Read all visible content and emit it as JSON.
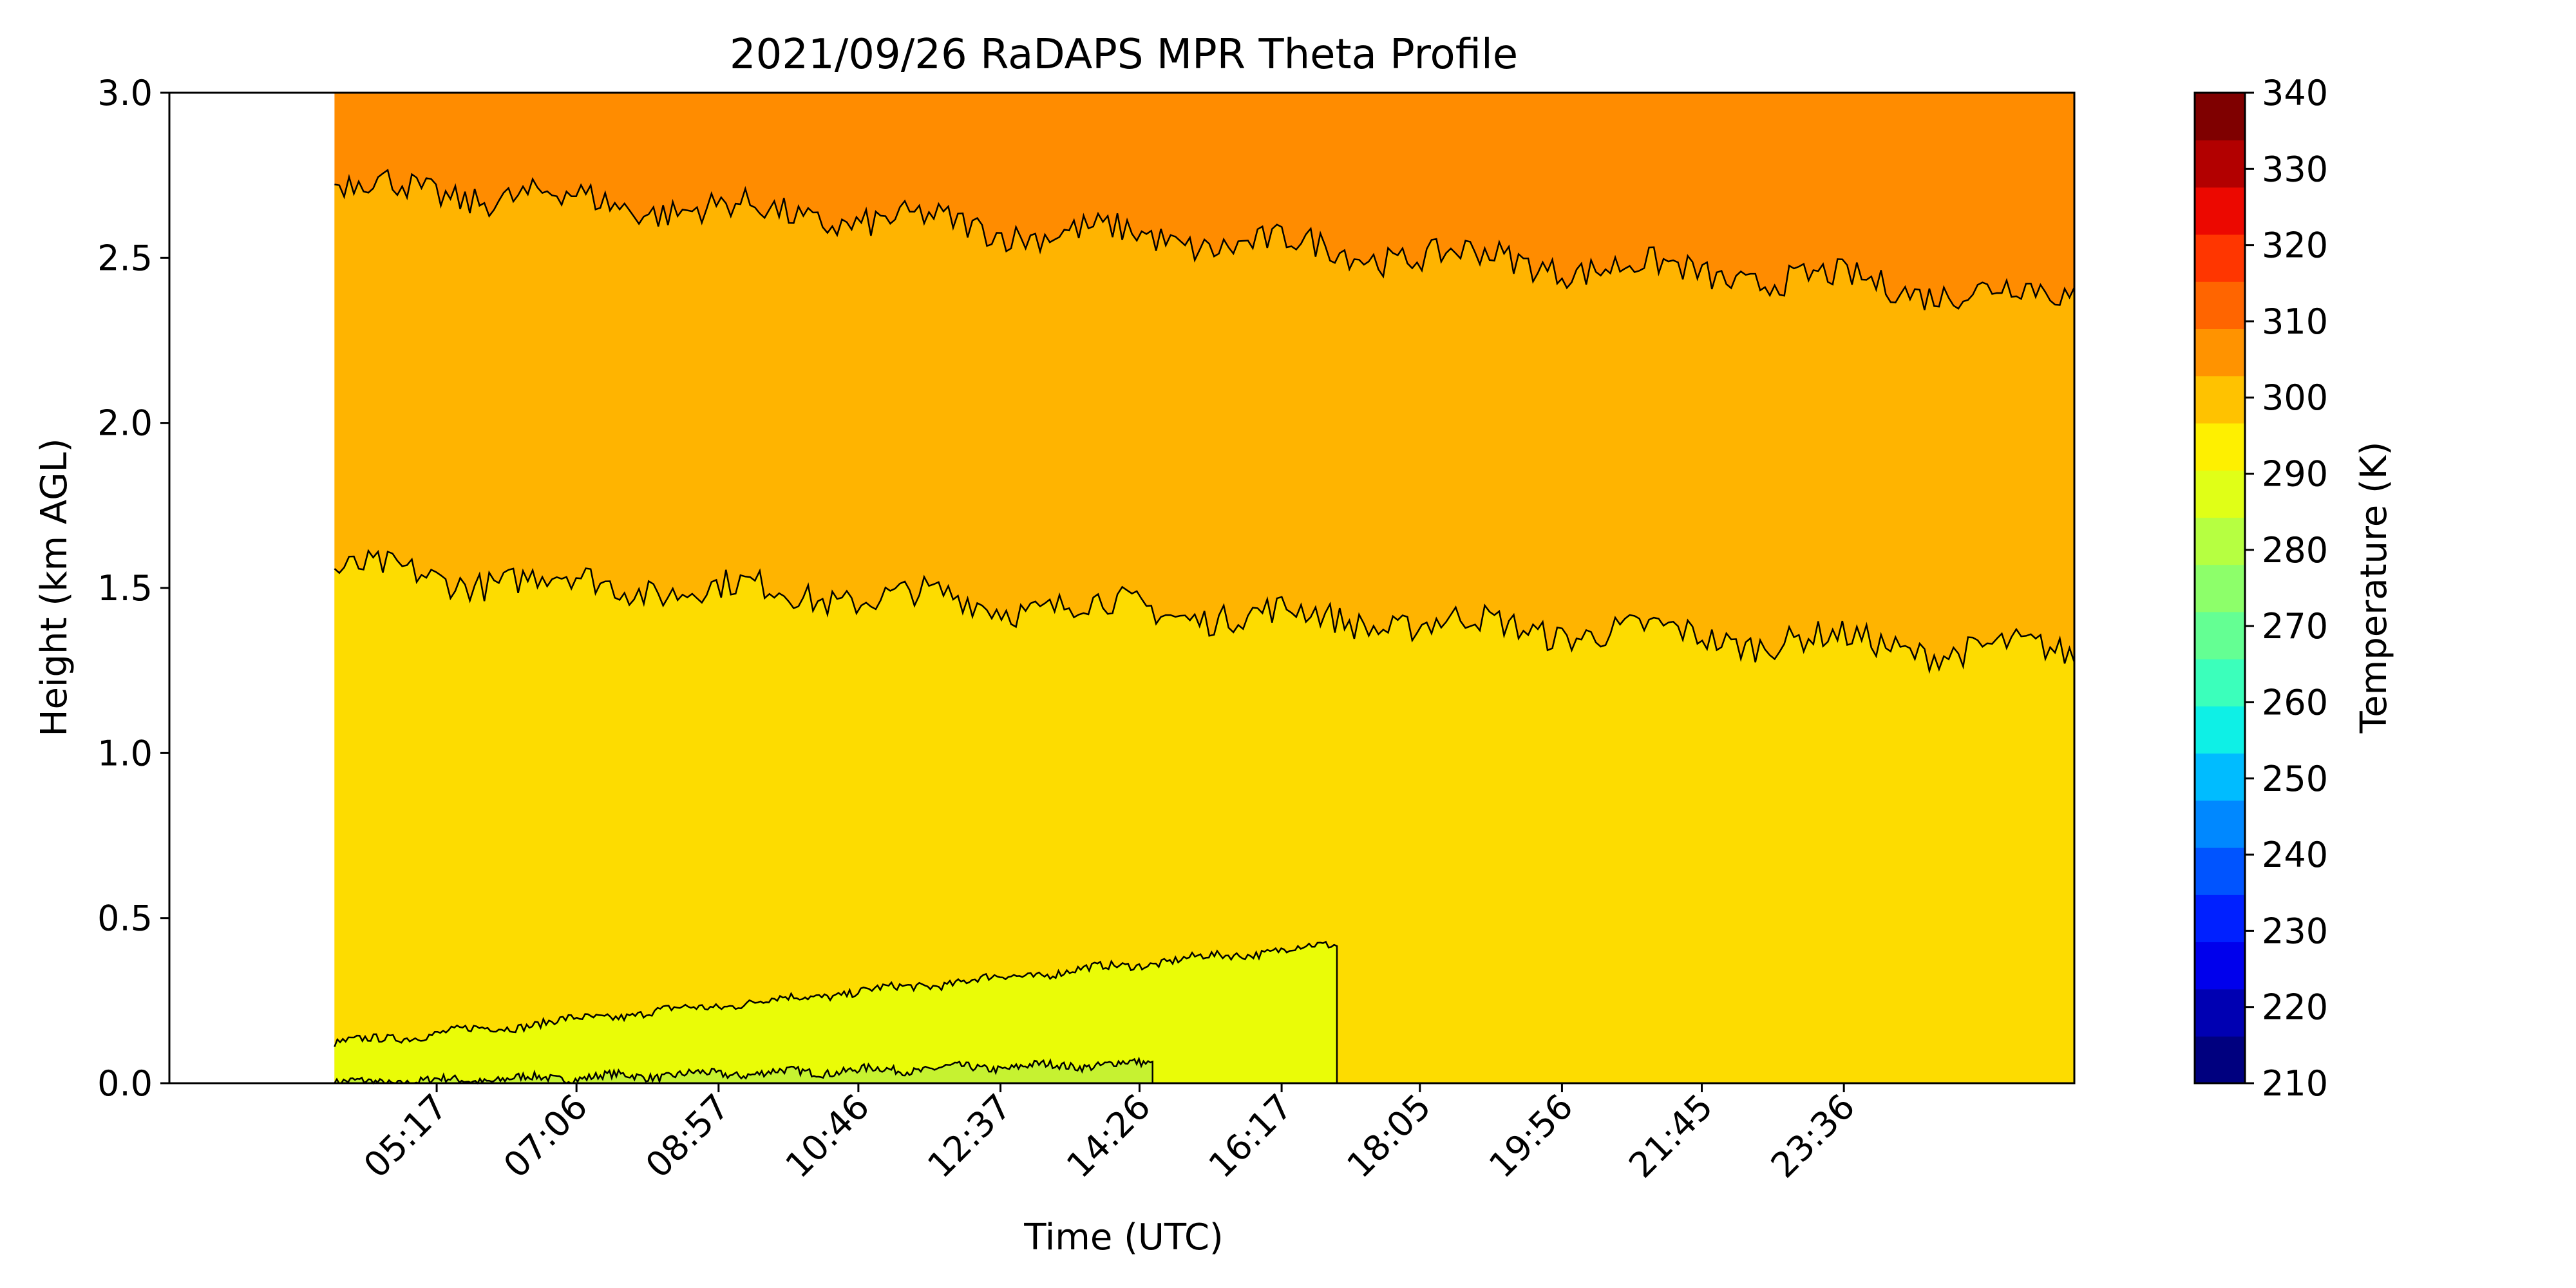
{
  "chart_data": {
    "type": "heatmap",
    "title": "2021/09/26 RaDAPS MPR Theta Profile",
    "xlabel": "Time (UTC)",
    "ylabel": "Height (km AGL)",
    "x_range_hours": [
      1.8,
      26.6
    ],
    "ylim": [
      0,
      3
    ],
    "x_ticks": [
      "05:17",
      "07:06",
      "08:57",
      "10:46",
      "12:37",
      "14:26",
      "16:17",
      "18:05",
      "19:56",
      "21:45",
      "23:36"
    ],
    "x_tick_hours": [
      5.28,
      7.1,
      8.95,
      10.77,
      12.62,
      14.43,
      16.28,
      18.08,
      19.93,
      21.75,
      23.6
    ],
    "y_ticks": [
      "0.0",
      "0.5",
      "1.0",
      "1.5",
      "2.0",
      "2.5",
      "3.0"
    ],
    "data_start_hour": 3.95,
    "theta_bands": [
      {
        "level_k": 285,
        "color": "#c6f231",
        "top_km_start": 0.0,
        "top_km_end": 0.06,
        "end_hour": 14.6
      },
      {
        "level_k": 290,
        "color": "#eafc07",
        "top_km_start": 0.12,
        "top_km_end": 0.42,
        "end_hour": 17.0
      },
      {
        "level_k": 295,
        "color": "#fddc00",
        "top_km_start": 1.55,
        "top_km_end": 1.3
      },
      {
        "level_k": 300,
        "color": "#ffb400",
        "top_km_start": 2.72,
        "top_km_end": 2.38
      },
      {
        "level_k": 305,
        "color": "#ff8c00",
        "top_km_start": 3.0,
        "top_km_end": 3.0
      }
    ],
    "colorbar": {
      "label": "Temperature (K)",
      "min": 210,
      "max": 340,
      "step": 5,
      "tick_labels": [
        "210",
        "220",
        "230",
        "240",
        "250",
        "260",
        "270",
        "280",
        "290",
        "300",
        "310",
        "320",
        "330",
        "340"
      ],
      "colors": [
        "#00007f",
        "#0000b2",
        "#0000ec",
        "#0020ff",
        "#0054ff",
        "#0088ff",
        "#00bcff",
        "#0ef0e6",
        "#3bffbb",
        "#64ff93",
        "#8dff6a",
        "#b6ff41",
        "#e0ff17",
        "#fef000",
        "#ffc200",
        "#ff9300",
        "#ff6500",
        "#ff3600",
        "#ec0800",
        "#b20000",
        "#7f0000"
      ]
    }
  }
}
